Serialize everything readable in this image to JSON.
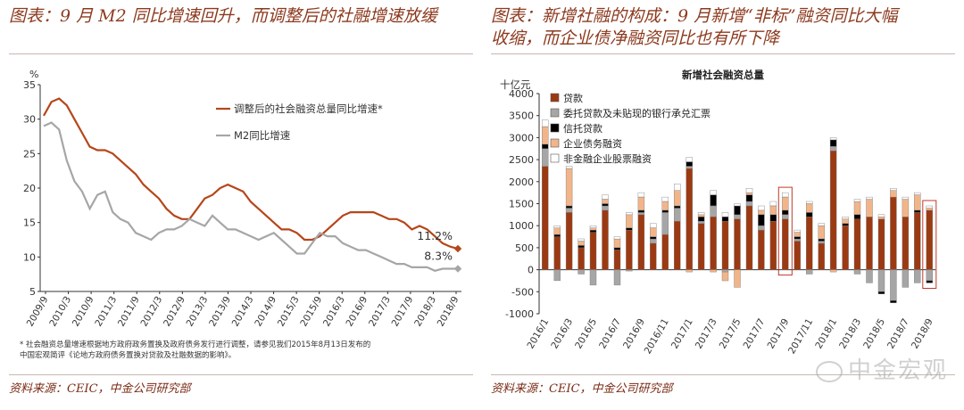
{
  "left": {
    "title": "图表：9 月 M2 同比增速回升，而调整后的社融增速放缓",
    "source": "资料来源：CEIC，中金公司研究部",
    "footnote_lines": [
      "* 社会融资总量增速根据地方政府政务置换及政府债务发行进行调整，请参见我们2015年8月13日发布的",
      "中国宏观简评《论地方政府债务置换对贷款及社融数据的影响》。"
    ]
  },
  "right": {
    "title_line1": "图表：新增社融的构成：9 月新增“非标”融资同比大幅",
    "title_line2": "收缩，而企业债净融资同比也有所下降",
    "source": "资料来源：CEIC，中金公司研究部"
  },
  "watermark": "中金宏观",
  "colors": {
    "tsf_line": "#b5461a",
    "m2_line": "#a6a6a6",
    "loans": "#9b3a12",
    "entrusted": "#a6a6a6",
    "trust": "#000000",
    "bonds": "#f2b58a",
    "equity": "#ffffff",
    "highlight": "#c0392b"
  },
  "chart_data": [
    {
      "type": "line",
      "title": "",
      "ylabel": "%",
      "ylim": [
        5,
        35
      ],
      "yticks": [
        "5",
        "10",
        "15",
        "20",
        "25",
        "30",
        "35"
      ],
      "x_tick_labels": [
        "2009/9",
        "2010/3",
        "2010/9",
        "2011/3",
        "2011/9",
        "2012/3",
        "2012/9",
        "2013/3",
        "2013/9",
        "2014/3",
        "2014/9",
        "2015/3",
        "2015/9",
        "2016/3",
        "2016/9",
        "2017/3",
        "2017/9",
        "2018/3",
        "2018/9"
      ],
      "series": [
        {
          "name": "调整后的社会融资总量同比增速*",
          "end_label": "11.2%",
          "values": [
            30.5,
            32.5,
            33.0,
            32.0,
            30.0,
            28.0,
            26.0,
            25.5,
            25.5,
            25.0,
            24.0,
            23.0,
            22.0,
            20.5,
            19.5,
            18.5,
            17.0,
            16.0,
            15.5,
            15.5,
            17.0,
            18.5,
            19.0,
            20.0,
            20.5,
            20.0,
            19.5,
            18.0,
            17.0,
            16.0,
            15.0,
            14.0,
            14.0,
            13.5,
            12.5,
            12.5,
            13.0,
            14.0,
            15.0,
            16.0,
            16.5,
            16.5,
            16.5,
            16.5,
            16.0,
            15.5,
            15.5,
            15.0,
            14.0,
            14.5,
            14.0,
            13.0,
            12.0,
            11.5,
            11.2
          ]
        },
        {
          "name": "M2同比增速",
          "end_label": "8.3%",
          "values": [
            29.0,
            29.5,
            28.5,
            24.0,
            21.0,
            19.5,
            17.0,
            19.0,
            19.5,
            16.5,
            15.5,
            15.0,
            13.5,
            13.0,
            12.5,
            13.5,
            14.0,
            14.0,
            14.5,
            15.5,
            15.0,
            14.5,
            16.0,
            15.0,
            14.0,
            14.0,
            13.5,
            13.0,
            12.5,
            13.0,
            13.5,
            12.5,
            11.5,
            10.5,
            10.5,
            12.0,
            13.5,
            13.0,
            13.0,
            12.0,
            11.5,
            11.0,
            11.0,
            10.5,
            10.0,
            9.5,
            9.0,
            9.0,
            8.5,
            8.5,
            8.5,
            8.0,
            8.3,
            8.3,
            8.3
          ]
        }
      ],
      "legend": "inside-top-right"
    },
    {
      "type": "bar",
      "stacked": true,
      "title": "新增社会融资总量",
      "ylabel": "十亿元",
      "ylim": [
        -1000,
        4000
      ],
      "yticks": [
        "-1000",
        "-500",
        "0",
        "500",
        "1000",
        "1500",
        "2000",
        "2500",
        "3000",
        "3500",
        "4000"
      ],
      "x_tick_labels": [
        "2016/1",
        "2016/3",
        "2016/5",
        "2016/7",
        "2016/9",
        "2016/11",
        "2017/1",
        "2017/3",
        "2017/5",
        "2017/7",
        "2017/9",
        "2017/11",
        "2018/1",
        "2018/3",
        "2018/5",
        "2018/7",
        "2018/9"
      ],
      "categories": [
        "2016/1",
        "2016/2",
        "2016/3",
        "2016/4",
        "2016/5",
        "2016/6",
        "2016/7",
        "2016/8",
        "2016/9",
        "2016/10",
        "2016/11",
        "2016/12",
        "2017/1",
        "2017/2",
        "2017/3",
        "2017/4",
        "2017/5",
        "2017/6",
        "2017/7",
        "2017/8",
        "2017/9",
        "2017/10",
        "2017/11",
        "2017/12",
        "2018/1",
        "2018/2",
        "2018/3",
        "2018/4",
        "2018/5",
        "2018/6",
        "2018/7",
        "2018/8",
        "2018/9"
      ],
      "series": [
        {
          "name": "贷款",
          "values": [
            2350,
            750,
            1300,
            500,
            850,
            1350,
            450,
            900,
            1250,
            600,
            800,
            1100,
            2300,
            1050,
            1200,
            1100,
            1150,
            1450,
            900,
            1100,
            1150,
            650,
            1200,
            600,
            2700,
            1000,
            1150,
            1200,
            1150,
            1650,
            1200,
            1300,
            1350
          ]
        },
        {
          "name": "委托贷款及未贴现的银行承兑汇票",
          "values": [
            400,
            -250,
            100,
            -100,
            -350,
            100,
            -350,
            -30,
            50,
            100,
            500,
            300,
            50,
            50,
            250,
            -50,
            100,
            100,
            100,
            0,
            100,
            50,
            -100,
            50,
            100,
            0,
            -100,
            -300,
            -500,
            -700,
            -400,
            -300,
            -250
          ]
        },
        {
          "name": "信托贷款",
          "values": [
            100,
            50,
            50,
            50,
            50,
            50,
            50,
            50,
            50,
            50,
            50,
            50,
            100,
            100,
            250,
            100,
            200,
            150,
            250,
            150,
            100,
            50,
            100,
            50,
            150,
            50,
            100,
            0,
            -50,
            -50,
            0,
            50,
            -50
          ]
        },
        {
          "name": "企业债务融资",
          "values": [
            400,
            150,
            850,
            100,
            50,
            100,
            200,
            300,
            300,
            200,
            200,
            350,
            -50,
            50,
            -50,
            -200,
            -400,
            50,
            100,
            200,
            300,
            100,
            200,
            300,
            -50,
            100,
            300,
            400,
            50,
            150,
            400,
            350,
            50
          ]
        },
        {
          "name": "非金融企业股票融资",
          "values": [
            150,
            50,
            50,
            50,
            50,
            100,
            50,
            50,
            100,
            100,
            100,
            150,
            100,
            50,
            100,
            100,
            50,
            100,
            100,
            100,
            100,
            50,
            50,
            50,
            50,
            50,
            50,
            50,
            50,
            50,
            50,
            50,
            50
          ]
        }
      ],
      "highlights": [
        "2017/9",
        "2018/9"
      ],
      "legend": "inside-top-left"
    }
  ]
}
